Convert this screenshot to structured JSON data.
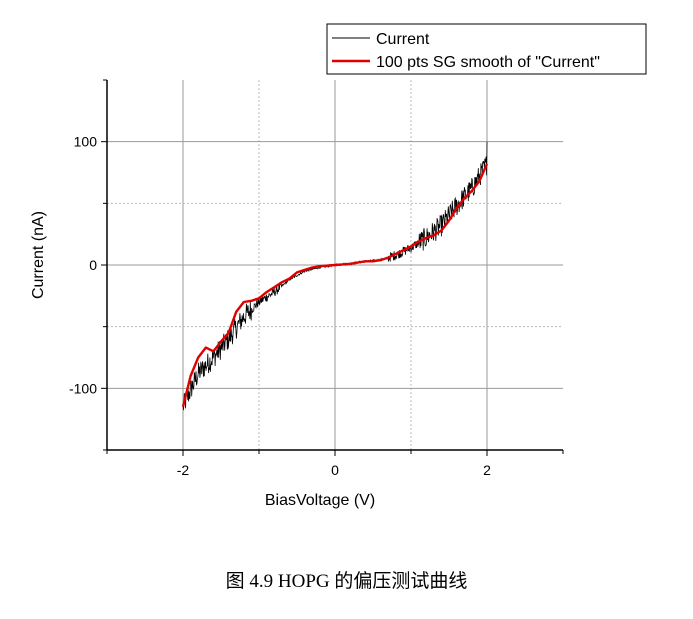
{
  "chart_data": {
    "type": "line",
    "xlabel": "BiasVoltage (V)",
    "ylabel": "Current (nA)",
    "xlim": [
      -3,
      3
    ],
    "ylim": [
      -150,
      150
    ],
    "xticks": [
      -2,
      0,
      2
    ],
    "xtick_labels": [
      "-2",
      "0",
      "2"
    ],
    "yticks": [
      -100,
      0,
      100
    ],
    "ytick_labels": [
      "-100",
      "0",
      "100"
    ],
    "grid": true,
    "legend_position": "top-right",
    "series": [
      {
        "name": "Current",
        "color": "#000000",
        "x": [
          -2.0,
          -1.8,
          -1.6,
          -1.4,
          -1.2,
          -1.0,
          -0.8,
          -0.6,
          -0.4,
          -0.2,
          0.0,
          0.2,
          0.4,
          0.6,
          0.8,
          1.0,
          1.2,
          1.4,
          1.6,
          1.8,
          2.0
        ],
        "y": [
          -115,
          -88,
          -75,
          -60,
          -42,
          -30,
          -22,
          -12,
          -5,
          -2,
          0,
          1,
          3,
          4,
          8,
          14,
          22,
          32,
          48,
          62,
          82
        ],
        "noisy": true
      },
      {
        "name": "100 pts SG smooth of \"Current\"",
        "color": "#e00000",
        "x": [
          -2.0,
          -1.9,
          -1.8,
          -1.7,
          -1.6,
          -1.5,
          -1.4,
          -1.3,
          -1.2,
          -1.1,
          -1.0,
          -0.9,
          -0.8,
          -0.7,
          -0.6,
          -0.5,
          -0.4,
          -0.3,
          -0.2,
          -0.1,
          0.0,
          0.1,
          0.2,
          0.3,
          0.4,
          0.5,
          0.6,
          0.7,
          0.8,
          0.9,
          1.0,
          1.1,
          1.2,
          1.3,
          1.4,
          1.5,
          1.6,
          1.7,
          1.8,
          1.9,
          2.0
        ],
        "y": [
          -115,
          -90,
          -75,
          -67,
          -70,
          -62,
          -55,
          -38,
          -30,
          -29,
          -27,
          -22,
          -18,
          -14,
          -11,
          -6,
          -4,
          -2,
          -1,
          -0.5,
          0,
          0.5,
          1,
          2,
          3,
          3,
          4,
          6,
          9,
          12,
          15,
          19,
          22,
          24,
          28,
          36,
          46,
          54,
          60,
          68,
          82
        ]
      }
    ]
  },
  "caption": "图 4.9    HOPG 的偏压测试曲线"
}
